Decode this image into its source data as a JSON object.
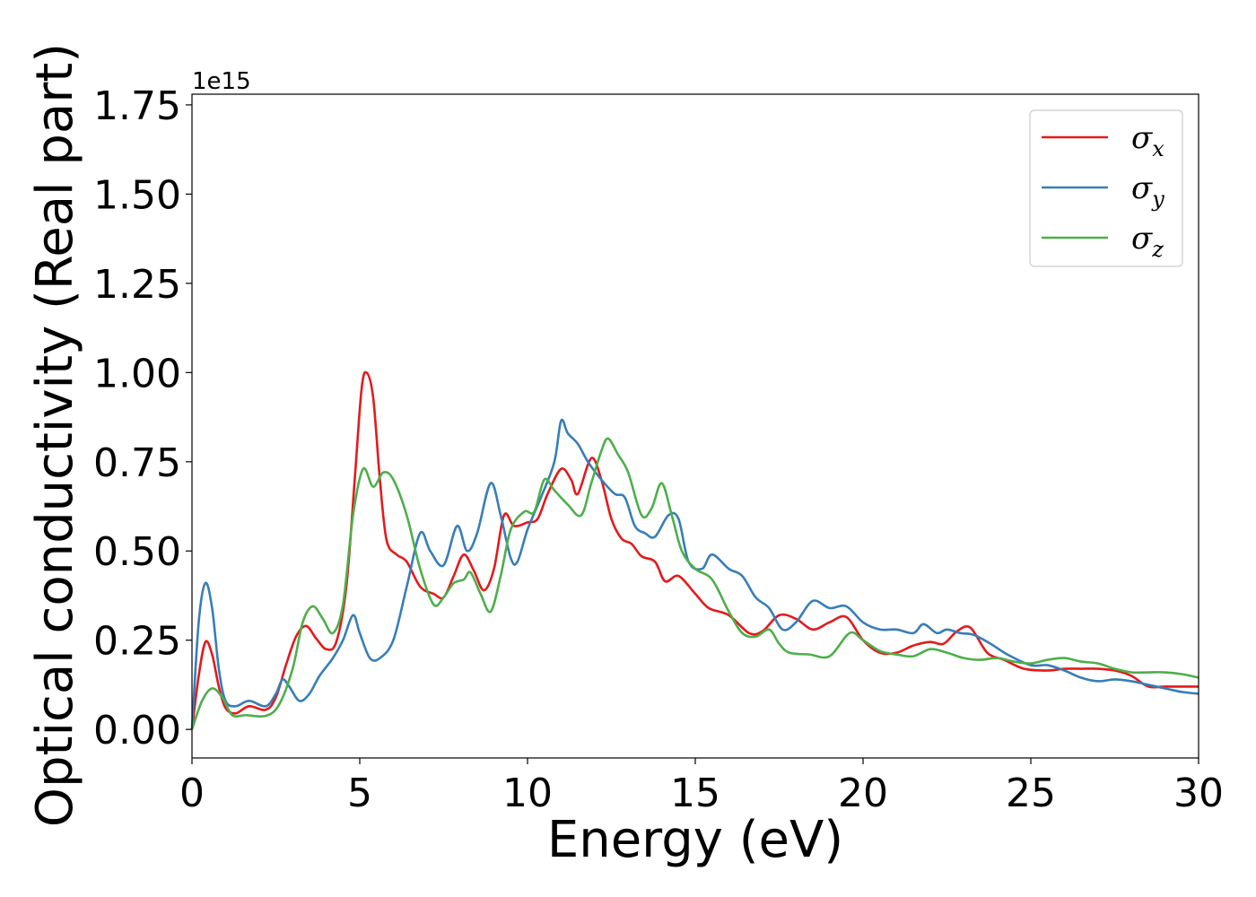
{
  "chart_data": {
    "type": "line",
    "xlabel": "Energy (eV)",
    "ylabel": "Optical conductivity (Real part)",
    "y_offset_text": "1e15",
    "xlim": [
      0,
      30
    ],
    "ylim": [
      -0.08,
      1.78
    ],
    "x_ticks": [
      0,
      5,
      10,
      15,
      20,
      25,
      30
    ],
    "x_tick_labels": [
      "0",
      "5",
      "10",
      "15",
      "20",
      "25",
      "30"
    ],
    "y_ticks": [
      0.0,
      0.25,
      0.5,
      0.75,
      1.0,
      1.25,
      1.5,
      1.75
    ],
    "y_tick_labels": [
      "0.00",
      "0.25",
      "0.50",
      "0.75",
      "1.00",
      "1.25",
      "1.50",
      "1.75"
    ],
    "grid": false,
    "legend_position": "top-right",
    "series": [
      {
        "name": "σx",
        "legend_symbol": "σ",
        "legend_sub": "x",
        "color": "#e41a1c",
        "points": [
          [
            0,
            0.0
          ],
          [
            0.2,
            0.15
          ],
          [
            0.4,
            0.245
          ],
          [
            0.6,
            0.21
          ],
          [
            0.8,
            0.12
          ],
          [
            1.0,
            0.06
          ],
          [
            1.3,
            0.045
          ],
          [
            1.7,
            0.065
          ],
          [
            2.2,
            0.055
          ],
          [
            2.5,
            0.09
          ],
          [
            2.8,
            0.18
          ],
          [
            3.1,
            0.26
          ],
          [
            3.4,
            0.29
          ],
          [
            3.7,
            0.255
          ],
          [
            4.0,
            0.225
          ],
          [
            4.3,
            0.245
          ],
          [
            4.6,
            0.4
          ],
          [
            4.85,
            0.7
          ],
          [
            5.05,
            0.95
          ],
          [
            5.2,
            1.0
          ],
          [
            5.4,
            0.93
          ],
          [
            5.6,
            0.7
          ],
          [
            5.8,
            0.53
          ],
          [
            6.1,
            0.49
          ],
          [
            6.4,
            0.47
          ],
          [
            6.8,
            0.4
          ],
          [
            7.2,
            0.38
          ],
          [
            7.5,
            0.37
          ],
          [
            7.8,
            0.43
          ],
          [
            8.1,
            0.49
          ],
          [
            8.4,
            0.445
          ],
          [
            8.7,
            0.39
          ],
          [
            9.0,
            0.45
          ],
          [
            9.3,
            0.6
          ],
          [
            9.6,
            0.57
          ],
          [
            10.0,
            0.58
          ],
          [
            10.3,
            0.59
          ],
          [
            10.6,
            0.66
          ],
          [
            11.0,
            0.73
          ],
          [
            11.3,
            0.7
          ],
          [
            11.5,
            0.66
          ],
          [
            11.9,
            0.76
          ],
          [
            12.2,
            0.7
          ],
          [
            12.5,
            0.59
          ],
          [
            12.8,
            0.535
          ],
          [
            13.1,
            0.52
          ],
          [
            13.4,
            0.485
          ],
          [
            13.8,
            0.47
          ],
          [
            14.1,
            0.415
          ],
          [
            14.5,
            0.43
          ],
          [
            15.0,
            0.38
          ],
          [
            15.4,
            0.34
          ],
          [
            16.0,
            0.32
          ],
          [
            16.6,
            0.27
          ],
          [
            17.0,
            0.275
          ],
          [
            17.5,
            0.32
          ],
          [
            18.0,
            0.31
          ],
          [
            18.5,
            0.28
          ],
          [
            19.0,
            0.3
          ],
          [
            19.5,
            0.315
          ],
          [
            20.0,
            0.25
          ],
          [
            20.5,
            0.215
          ],
          [
            21.0,
            0.215
          ],
          [
            21.5,
            0.235
          ],
          [
            22.0,
            0.245
          ],
          [
            22.4,
            0.24
          ],
          [
            22.8,
            0.275
          ],
          [
            23.2,
            0.285
          ],
          [
            23.7,
            0.215
          ],
          [
            24.2,
            0.195
          ],
          [
            24.8,
            0.17
          ],
          [
            25.5,
            0.165
          ],
          [
            26.0,
            0.17
          ],
          [
            26.5,
            0.17
          ],
          [
            27.0,
            0.17
          ],
          [
            27.5,
            0.165
          ],
          [
            28.0,
            0.15
          ],
          [
            28.5,
            0.12
          ],
          [
            29.0,
            0.12
          ],
          [
            30.0,
            0.12
          ]
        ]
      },
      {
        "name": "σy",
        "legend_symbol": "σ",
        "legend_sub": "y",
        "color": "#377eb8",
        "points": [
          [
            0,
            0.0
          ],
          [
            0.2,
            0.3
          ],
          [
            0.4,
            0.41
          ],
          [
            0.6,
            0.34
          ],
          [
            0.8,
            0.17
          ],
          [
            1.0,
            0.08
          ],
          [
            1.3,
            0.065
          ],
          [
            1.7,
            0.08
          ],
          [
            2.2,
            0.065
          ],
          [
            2.5,
            0.1
          ],
          [
            2.7,
            0.14
          ],
          [
            2.9,
            0.12
          ],
          [
            3.2,
            0.08
          ],
          [
            3.5,
            0.1
          ],
          [
            3.8,
            0.15
          ],
          [
            4.2,
            0.2
          ],
          [
            4.5,
            0.25
          ],
          [
            4.8,
            0.32
          ],
          [
            5.0,
            0.27
          ],
          [
            5.3,
            0.2
          ],
          [
            5.6,
            0.2
          ],
          [
            6.0,
            0.25
          ],
          [
            6.4,
            0.4
          ],
          [
            6.8,
            0.55
          ],
          [
            7.1,
            0.5
          ],
          [
            7.5,
            0.46
          ],
          [
            7.9,
            0.57
          ],
          [
            8.2,
            0.5
          ],
          [
            8.5,
            0.55
          ],
          [
            8.9,
            0.69
          ],
          [
            9.2,
            0.6
          ],
          [
            9.5,
            0.48
          ],
          [
            9.7,
            0.47
          ],
          [
            10.0,
            0.56
          ],
          [
            10.4,
            0.65
          ],
          [
            10.8,
            0.75
          ],
          [
            11.0,
            0.865
          ],
          [
            11.2,
            0.83
          ],
          [
            11.5,
            0.8
          ],
          [
            11.8,
            0.75
          ],
          [
            12.2,
            0.7
          ],
          [
            12.6,
            0.66
          ],
          [
            12.9,
            0.65
          ],
          [
            13.2,
            0.57
          ],
          [
            13.5,
            0.55
          ],
          [
            13.8,
            0.54
          ],
          [
            14.2,
            0.6
          ],
          [
            14.5,
            0.59
          ],
          [
            14.8,
            0.47
          ],
          [
            15.2,
            0.45
          ],
          [
            15.5,
            0.49
          ],
          [
            16.0,
            0.45
          ],
          [
            16.4,
            0.43
          ],
          [
            16.8,
            0.37
          ],
          [
            17.2,
            0.34
          ],
          [
            17.6,
            0.28
          ],
          [
            18.0,
            0.3
          ],
          [
            18.5,
            0.36
          ],
          [
            19.0,
            0.34
          ],
          [
            19.5,
            0.345
          ],
          [
            20.0,
            0.3
          ],
          [
            20.5,
            0.28
          ],
          [
            21.0,
            0.28
          ],
          [
            21.5,
            0.27
          ],
          [
            21.8,
            0.295
          ],
          [
            22.2,
            0.27
          ],
          [
            22.5,
            0.28
          ],
          [
            22.9,
            0.27
          ],
          [
            23.3,
            0.265
          ],
          [
            23.8,
            0.24
          ],
          [
            24.3,
            0.21
          ],
          [
            25.0,
            0.18
          ],
          [
            25.5,
            0.18
          ],
          [
            26.0,
            0.165
          ],
          [
            26.5,
            0.145
          ],
          [
            27.0,
            0.135
          ],
          [
            27.5,
            0.14
          ],
          [
            28.0,
            0.135
          ],
          [
            28.5,
            0.125
          ],
          [
            29.0,
            0.115
          ],
          [
            29.5,
            0.105
          ],
          [
            30.0,
            0.1
          ]
        ]
      },
      {
        "name": "σz",
        "legend_symbol": "σ",
        "legend_sub": "z",
        "color": "#4daf4a",
        "points": [
          [
            0,
            0.0
          ],
          [
            0.3,
            0.08
          ],
          [
            0.6,
            0.115
          ],
          [
            0.9,
            0.09
          ],
          [
            1.2,
            0.04
          ],
          [
            1.6,
            0.04
          ],
          [
            2.2,
            0.038
          ],
          [
            2.6,
            0.07
          ],
          [
            3.0,
            0.17
          ],
          [
            3.3,
            0.3
          ],
          [
            3.6,
            0.345
          ],
          [
            3.9,
            0.31
          ],
          [
            4.2,
            0.27
          ],
          [
            4.5,
            0.35
          ],
          [
            4.8,
            0.6
          ],
          [
            5.1,
            0.73
          ],
          [
            5.4,
            0.68
          ],
          [
            5.7,
            0.72
          ],
          [
            6.0,
            0.7
          ],
          [
            6.4,
            0.6
          ],
          [
            6.8,
            0.45
          ],
          [
            7.2,
            0.35
          ],
          [
            7.5,
            0.37
          ],
          [
            7.8,
            0.41
          ],
          [
            8.1,
            0.42
          ],
          [
            8.3,
            0.44
          ],
          [
            8.6,
            0.38
          ],
          [
            8.9,
            0.33
          ],
          [
            9.2,
            0.43
          ],
          [
            9.5,
            0.56
          ],
          [
            9.9,
            0.61
          ],
          [
            10.2,
            0.61
          ],
          [
            10.5,
            0.7
          ],
          [
            10.8,
            0.67
          ],
          [
            11.2,
            0.63
          ],
          [
            11.6,
            0.6
          ],
          [
            11.9,
            0.69
          ],
          [
            12.2,
            0.78
          ],
          [
            12.4,
            0.815
          ],
          [
            12.7,
            0.77
          ],
          [
            13.0,
            0.72
          ],
          [
            13.4,
            0.6
          ],
          [
            13.7,
            0.62
          ],
          [
            14.0,
            0.69
          ],
          [
            14.3,
            0.6
          ],
          [
            14.6,
            0.5
          ],
          [
            15.0,
            0.45
          ],
          [
            15.5,
            0.42
          ],
          [
            16.0,
            0.33
          ],
          [
            16.4,
            0.27
          ],
          [
            16.8,
            0.26
          ],
          [
            17.2,
            0.28
          ],
          [
            17.5,
            0.24
          ],
          [
            17.8,
            0.215
          ],
          [
            18.4,
            0.21
          ],
          [
            19.0,
            0.205
          ],
          [
            19.6,
            0.27
          ],
          [
            20.0,
            0.25
          ],
          [
            20.5,
            0.22
          ],
          [
            21.0,
            0.21
          ],
          [
            21.5,
            0.205
          ],
          [
            22.0,
            0.225
          ],
          [
            22.5,
            0.215
          ],
          [
            23.0,
            0.2
          ],
          [
            23.5,
            0.195
          ],
          [
            24.0,
            0.2
          ],
          [
            24.5,
            0.19
          ],
          [
            25.0,
            0.185
          ],
          [
            25.5,
            0.195
          ],
          [
            26.0,
            0.2
          ],
          [
            26.5,
            0.19
          ],
          [
            27.0,
            0.185
          ],
          [
            27.5,
            0.17
          ],
          [
            28.0,
            0.16
          ],
          [
            28.5,
            0.16
          ],
          [
            29.0,
            0.16
          ],
          [
            29.5,
            0.155
          ],
          [
            30.0,
            0.145
          ]
        ]
      }
    ]
  }
}
